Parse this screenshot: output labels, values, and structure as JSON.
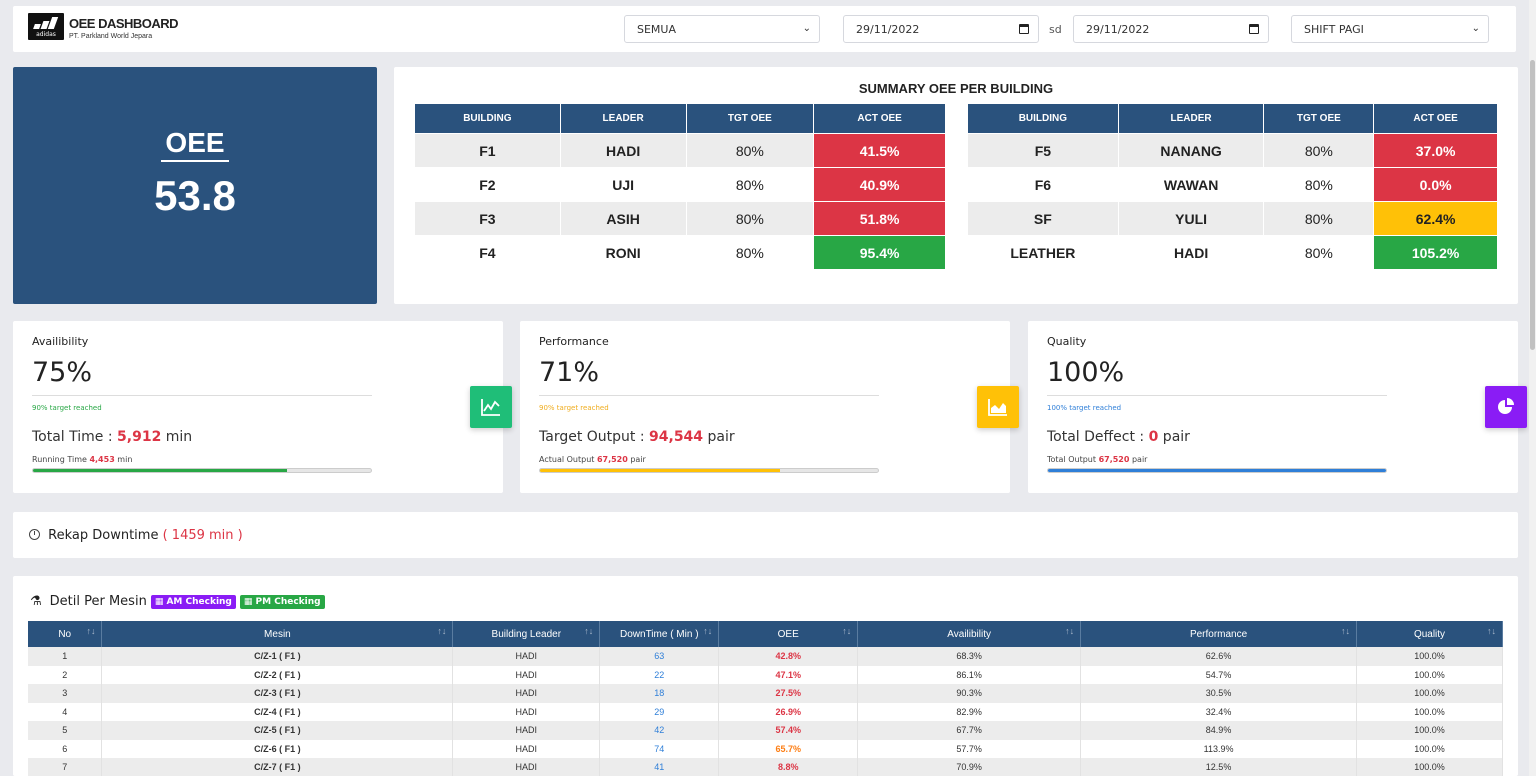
{
  "header": {
    "title": "OEE DASHBOARD",
    "subtitle": "PT. Parkland World Jepara",
    "logo_text": "adidas",
    "building_select": "SEMUA",
    "date_from": "29/11/2022",
    "separator": "sd",
    "date_to": "29/11/2022",
    "shift_select": "SHIFT PAGI"
  },
  "oee": {
    "label": "OEE",
    "value": "53.8"
  },
  "summary": {
    "title": "SUMMARY OEE PER BUILDING",
    "columns": [
      "BUILDING",
      "LEADER",
      "TGT OEE",
      "ACT OEE"
    ],
    "left": [
      {
        "building": "F1",
        "leader": "HADI",
        "tgt": "80%",
        "act": "41.5%",
        "status": "red"
      },
      {
        "building": "F2",
        "leader": "UJI",
        "tgt": "80%",
        "act": "40.9%",
        "status": "red"
      },
      {
        "building": "F3",
        "leader": "ASIH",
        "tgt": "80%",
        "act": "51.8%",
        "status": "red"
      },
      {
        "building": "F4",
        "leader": "RONI",
        "tgt": "80%",
        "act": "95.4%",
        "status": "green"
      }
    ],
    "right": [
      {
        "building": "F5",
        "leader": "NANANG",
        "tgt": "80%",
        "act": "37.0%",
        "status": "red"
      },
      {
        "building": "F6",
        "leader": "WAWAN",
        "tgt": "80%",
        "act": "0.0%",
        "status": "red"
      },
      {
        "building": "SF",
        "leader": "YULI",
        "tgt": "80%",
        "act": "62.4%",
        "status": "yellow"
      },
      {
        "building": "LEATHER",
        "leader": "HADI",
        "tgt": "80%",
        "act": "105.2%",
        "status": "green"
      }
    ]
  },
  "availability": {
    "label": "Availibility",
    "value": "75%",
    "target": "90% target reached",
    "total_label": "Total Time : ",
    "total_value": "5,912",
    "total_unit": " min",
    "small_label": "Running Time ",
    "small_value": "4,453",
    "small_unit": " min",
    "progress": 0.75,
    "color": "#28a745"
  },
  "performance": {
    "label": "Performance",
    "value": "71%",
    "target": "90% target reached",
    "total_label": "Target Output : ",
    "total_value": "94,544",
    "total_unit": " pair",
    "small_label": "Actual Output ",
    "small_value": "67,520",
    "small_unit": " pair",
    "progress": 0.71,
    "color": "#ffc107"
  },
  "quality": {
    "label": "Quality",
    "value": "100%",
    "target": "100% target reached",
    "total_label": "Total Deffect : ",
    "total_value": "0",
    "total_unit": " pair",
    "small_label": "Total Output ",
    "small_value": "67,520",
    "small_unit": " pair",
    "progress": 1.0,
    "color": "#2f7fd8"
  },
  "downtime": {
    "label": "Rekap Downtime",
    "value": "( 1459 min )"
  },
  "detail": {
    "title": "Detil Per Mesin",
    "am_button": "AM Checking",
    "pm_button": "PM Checking",
    "columns": [
      "No",
      "Mesin",
      "Building Leader",
      "DownTime ( Min )",
      "OEE",
      "Availibility",
      "Performance",
      "Quality"
    ],
    "rows": [
      {
        "no": "1",
        "mesin": "C/Z-1 ( F1 )",
        "leader": "HADI",
        "downtime": "63",
        "oee": "42.8%",
        "oee_color": "red",
        "avail": "68.3%",
        "perf": "62.6%",
        "quality": "100.0%"
      },
      {
        "no": "2",
        "mesin": "C/Z-2 ( F1 )",
        "leader": "HADI",
        "downtime": "22",
        "oee": "47.1%",
        "oee_color": "red",
        "avail": "86.1%",
        "perf": "54.7%",
        "quality": "100.0%"
      },
      {
        "no": "3",
        "mesin": "C/Z-3 ( F1 )",
        "leader": "HADI",
        "downtime": "18",
        "oee": "27.5%",
        "oee_color": "red",
        "avail": "90.3%",
        "perf": "30.5%",
        "quality": "100.0%"
      },
      {
        "no": "4",
        "mesin": "C/Z-4 ( F1 )",
        "leader": "HADI",
        "downtime": "29",
        "oee": "26.9%",
        "oee_color": "red",
        "avail": "82.9%",
        "perf": "32.4%",
        "quality": "100.0%"
      },
      {
        "no": "5",
        "mesin": "C/Z-5 ( F1 )",
        "leader": "HADI",
        "downtime": "42",
        "oee": "57.4%",
        "oee_color": "red",
        "avail": "67.7%",
        "perf": "84.9%",
        "quality": "100.0%"
      },
      {
        "no": "6",
        "mesin": "C/Z-6 ( F1 )",
        "leader": "HADI",
        "downtime": "74",
        "oee": "65.7%",
        "oee_color": "orange",
        "avail": "57.7%",
        "perf": "113.9%",
        "quality": "100.0%"
      },
      {
        "no": "7",
        "mesin": "C/Z-7 ( F1 )",
        "leader": "HADI",
        "downtime": "41",
        "oee": "8.8%",
        "oee_color": "red",
        "avail": "70.9%",
        "perf": "12.5%",
        "quality": "100.0%"
      }
    ]
  }
}
